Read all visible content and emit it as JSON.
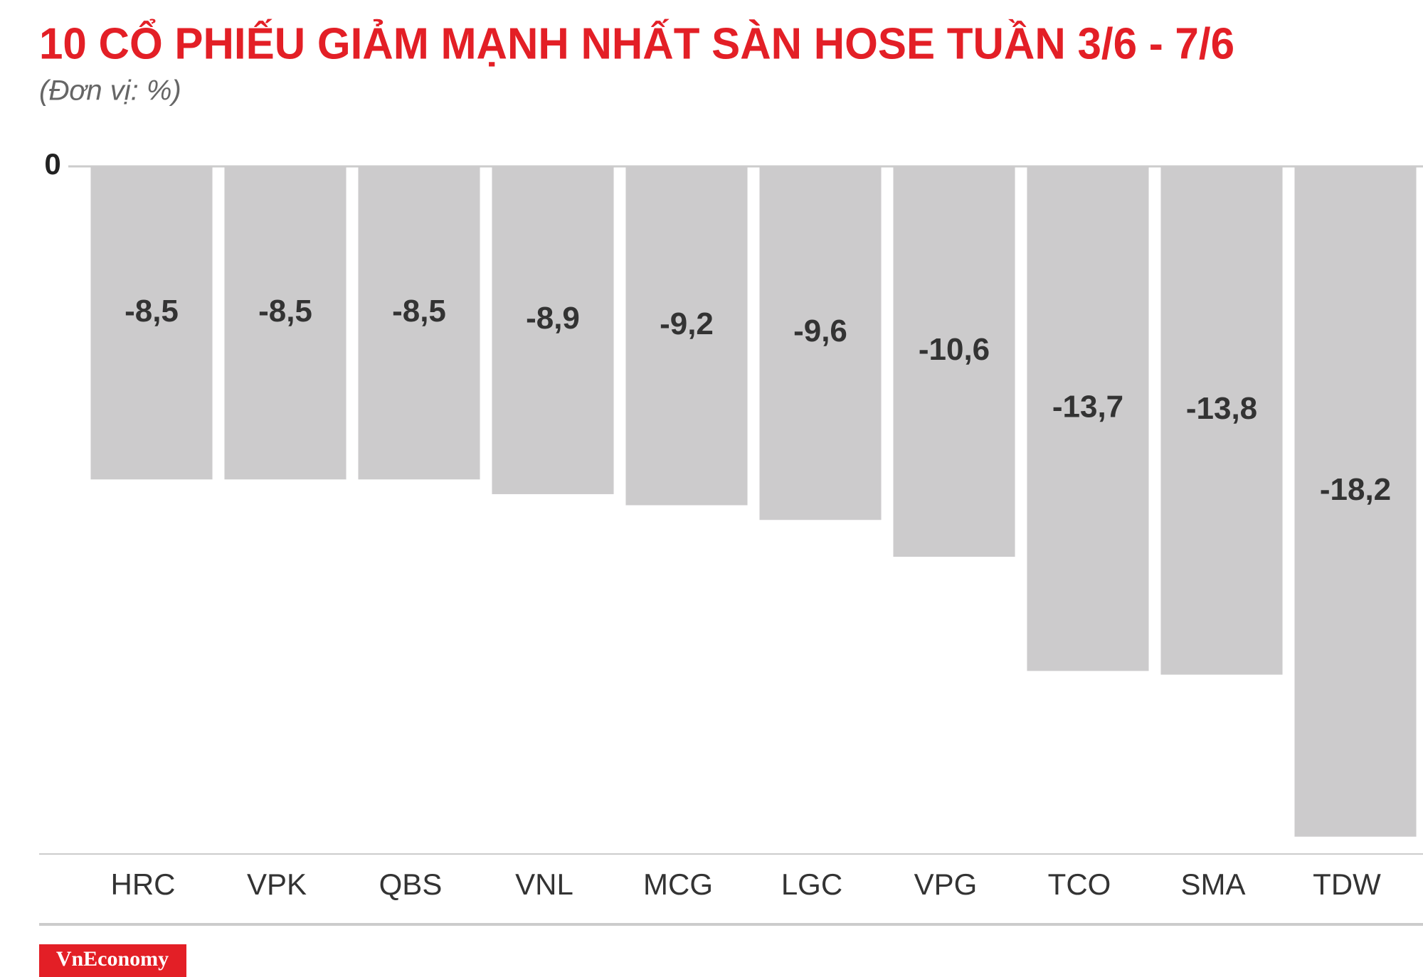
{
  "chart_data": {
    "type": "bar",
    "title": "10 CỔ PHIẾU GIẢM MẠNH NHẤT SÀN HOSE TUẦN 3/6 - 7/6",
    "subtitle": "(Đơn vị: %)",
    "categories": [
      "HRC",
      "VPK",
      "QBS",
      "VNL",
      "MCG",
      "LGC",
      "VPG",
      "TCO",
      "SMA",
      "TDW"
    ],
    "values": [
      -8.5,
      -8.5,
      -8.5,
      -8.9,
      -9.2,
      -9.6,
      -10.6,
      -13.7,
      -13.8,
      -18.2
    ],
    "value_labels": [
      "-8,5",
      "-8,5",
      "-8,5",
      "-8,9",
      "-9,2",
      "-9,6",
      "-10,6",
      "-13,7",
      "-13,8",
      "-18,2"
    ],
    "color": "#cccbcc",
    "ylim": [
      -18.67,
      0
    ],
    "yticks": [
      0
    ],
    "grid": true,
    "source": "VnEconomy"
  }
}
